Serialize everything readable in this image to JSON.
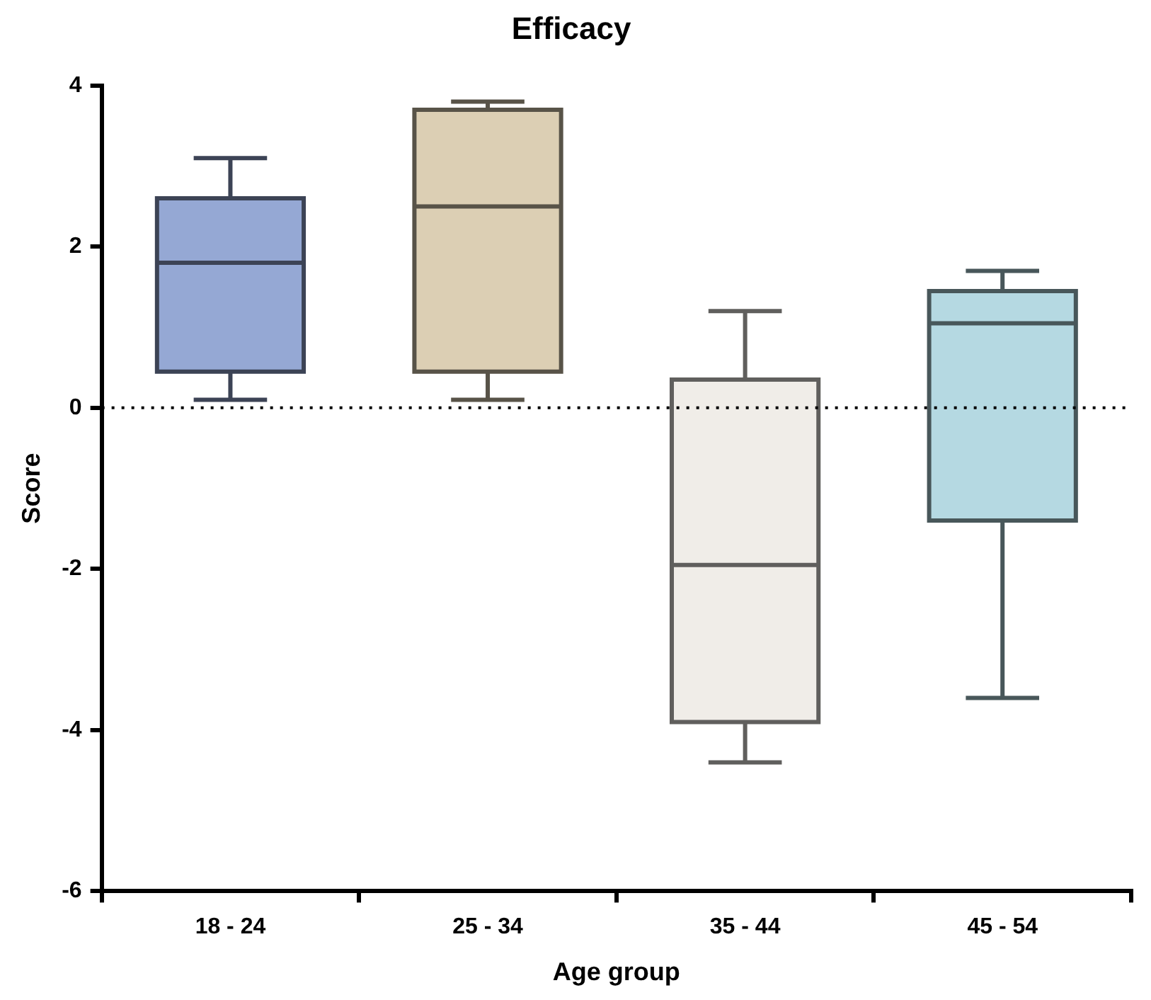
{
  "chart_data": {
    "type": "box",
    "title": "Efficacy",
    "xlabel": "Age group",
    "ylabel": "Score",
    "categories": [
      "18 - 24",
      "25 - 34",
      "35 - 44",
      "45 - 54"
    ],
    "colors": [
      "#95a8d4",
      "#dccfb4",
      "#f0ede8",
      "#b5d9e2"
    ],
    "boxes": [
      {
        "low": 0.1,
        "q1": 0.45,
        "median": 1.8,
        "q3": 2.6,
        "high": 3.1
      },
      {
        "low": 0.1,
        "q1": 0.45,
        "median": 2.5,
        "q3": 3.7,
        "high": 3.8
      },
      {
        "low": -4.4,
        "q1": -3.9,
        "median": -1.95,
        "q3": 0.35,
        "high": 1.2
      },
      {
        "low": -3.6,
        "q1": -1.4,
        "median": 1.05,
        "q3": 1.45,
        "high": 1.7
      }
    ],
    "ylim": [
      -6,
      4
    ],
    "yticks": [
      -6,
      -4,
      -2,
      0,
      2,
      4
    ],
    "grid": false,
    "legend": false,
    "ref_lines": [
      {
        "axis": "y",
        "value": 0,
        "color": "#000000",
        "line_style": "dotted"
      }
    ]
  }
}
